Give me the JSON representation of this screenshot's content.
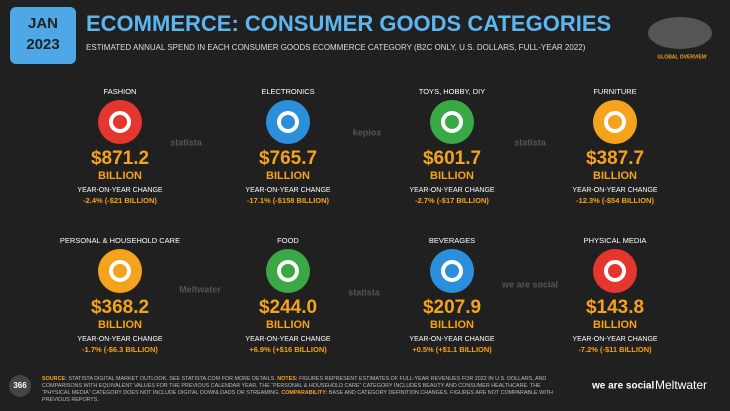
{
  "header": {
    "badge_month": "JAN",
    "badge_year": "2023",
    "title": "ECOMMERCE: CONSUMER GOODS CATEGORIES",
    "subtitle": "ESTIMATED ANNUAL SPEND IN EACH CONSUMER GOODS ECOMMERCE CATEGORY (B2C ONLY, U.S. DOLLARS, FULL-YEAR 2022)",
    "map_label": "GLOBAL OVERVIEW"
  },
  "cards": [
    {
      "category": "FASHION",
      "value": "$871.2",
      "unit": "BILLION",
      "change_label": "YEAR-ON-YEAR CHANGE",
      "change": "-2.4% (-$21 BILLION)",
      "color": "#e5352f"
    },
    {
      "category": "ELECTRONICS",
      "value": "$765.7",
      "unit": "BILLION",
      "change_label": "YEAR-ON-YEAR CHANGE",
      "change": "-17.1% (-$158 BILLION)",
      "color": "#2b8fdb"
    },
    {
      "category": "TOYS, HOBBY, DIY",
      "value": "$601.7",
      "unit": "BILLION",
      "change_label": "YEAR-ON-YEAR CHANGE",
      "change": "-2.7% (-$17 BILLION)",
      "color": "#3aa845"
    },
    {
      "category": "FURNITURE",
      "value": "$387.7",
      "unit": "BILLION",
      "change_label": "YEAR-ON-YEAR CHANGE",
      "change": "-12.3% (-$54 BILLION)",
      "color": "#f5a21c"
    },
    {
      "category": "PERSONAL & HOUSEHOLD CARE",
      "value": "$368.2",
      "unit": "BILLION",
      "change_label": "YEAR-ON-YEAR CHANGE",
      "change": "-1.7% (-$6.3 BILLION)",
      "color": "#f5a21c"
    },
    {
      "category": "FOOD",
      "value": "$244.0",
      "unit": "BILLION",
      "change_label": "YEAR-ON-YEAR CHANGE",
      "change": "+6.9% (+$16 BILLION)",
      "color": "#3aa845"
    },
    {
      "category": "BEVERAGES",
      "value": "$207.9",
      "unit": "BILLION",
      "change_label": "YEAR-ON-YEAR CHANGE",
      "change": "+0.5% (+$1.1 BILLION)",
      "color": "#2b8fdb"
    },
    {
      "category": "PHYSICAL MEDIA",
      "value": "$143.8",
      "unit": "BILLION",
      "change_label": "YEAR-ON-YEAR CHANGE",
      "change": "-7.2% (-$11 BILLION)",
      "color": "#e5352f"
    }
  ],
  "watermarks": [
    "statista",
    "kepios",
    "statista",
    "Meltwater",
    "statista",
    "we are social"
  ],
  "footer": {
    "page": "366",
    "notes": [
      {
        "label": "SOURCE:",
        "text": " STATISTA DIGITAL MARKET OUTLOOK. SEE STATISTA.COM FOR MORE DETAILS. "
      },
      {
        "label": "NOTES:",
        "text": " FIGURES REPRESENT ESTIMATES OF FULL-YEAR REVENUES FOR 2022 IN U.S. DOLLARS, AND COMPARISONS WITH EQUIVALENT VALUES FOR THE PREVIOUS CALENDAR YEAR. THE “PERSONAL & HOUSEHOLD CARE” CATEGORY INCLUDES BEAUTY AND CONSUMER HEALTHCARE. THE “PHYSICAL MEDIA” CATEGORY DOES NOT INCLUDE DIGITAL DOWNLOADS OR STREAMING. "
      },
      {
        "label": "COMPARABILITY:",
        "text": " BASE AND CATEGORY DEFINITION CHANGES. FIGURES ARE NOT COMPARABLE WITH PREVIOUS REPORTS."
      }
    ],
    "logo_was": "we are social",
    "logo_mw": "Meltwater"
  }
}
